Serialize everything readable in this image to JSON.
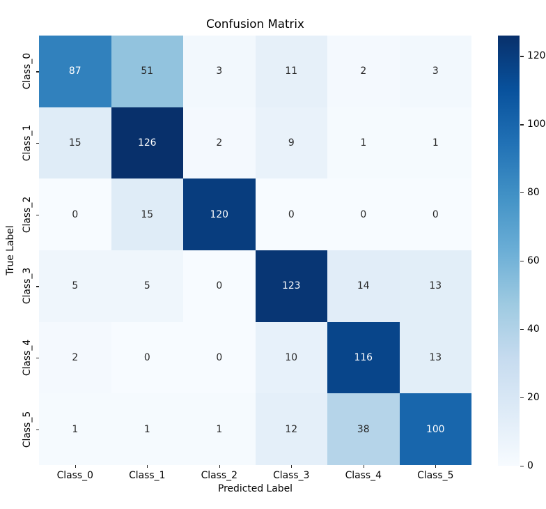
{
  "chart_data": {
    "type": "heatmap",
    "title": "Confusion Matrix",
    "xlabel": "Predicted Label",
    "ylabel": "True Label",
    "x_categories": [
      "Class_0",
      "Class_1",
      "Class_2",
      "Class_3",
      "Class_4",
      "Class_5"
    ],
    "y_categories": [
      "Class_0",
      "Class_1",
      "Class_2",
      "Class_3",
      "Class_4",
      "Class_5"
    ],
    "values": [
      [
        87,
        51,
        3,
        11,
        2,
        3
      ],
      [
        15,
        126,
        2,
        9,
        1,
        1
      ],
      [
        0,
        15,
        120,
        0,
        0,
        0
      ],
      [
        5,
        5,
        0,
        123,
        14,
        13
      ],
      [
        2,
        0,
        0,
        10,
        116,
        13
      ],
      [
        1,
        1,
        1,
        12,
        38,
        100
      ]
    ],
    "vmin": 0,
    "vmax": 126,
    "colormap": "Blues",
    "cmap_anchors": [
      "#f7fbff",
      "#deebf7",
      "#c6dbef",
      "#9ecae1",
      "#6baed6",
      "#4292c6",
      "#2171b5",
      "#08519c",
      "#08306b"
    ],
    "colorbar_ticks": [
      0,
      20,
      40,
      60,
      80,
      100,
      120
    ],
    "legend_position": "right-colorbar",
    "grid": false,
    "annot_color_dark": "#262626",
    "annot_color_light": "#ffffff",
    "tick_color": "#262626"
  }
}
